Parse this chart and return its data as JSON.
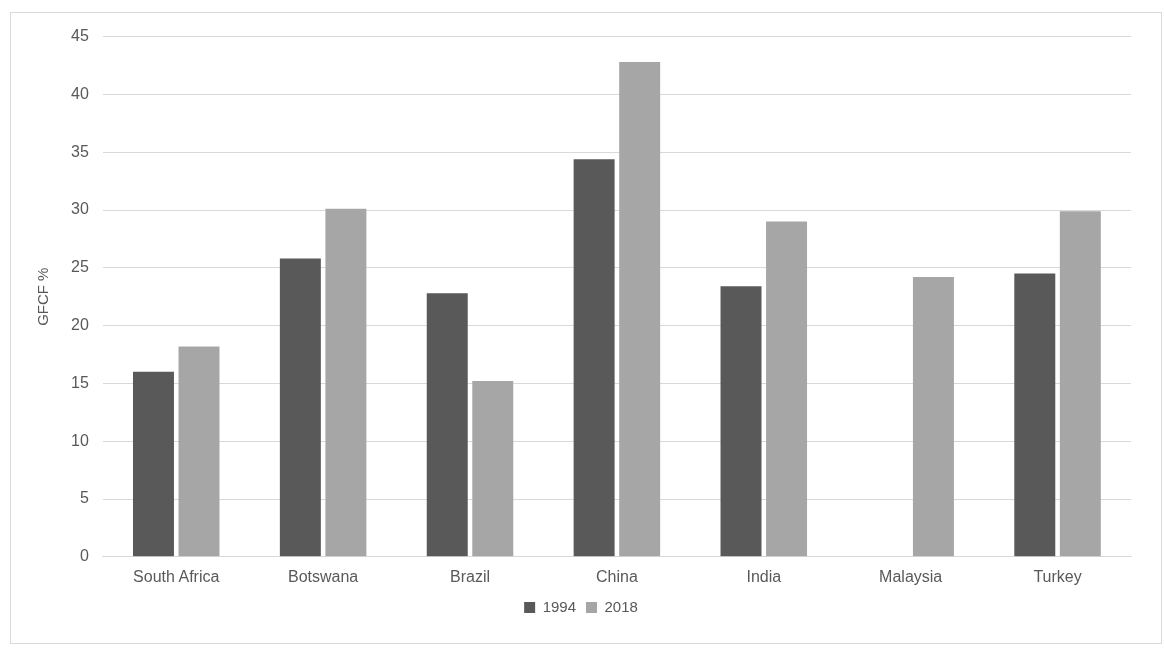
{
  "chart_data": {
    "type": "bar",
    "ylabel": "GFCF %",
    "categories": [
      "South Africa",
      "Botswana",
      "Brazil",
      "China",
      "India",
      "Malaysia",
      "Turkey"
    ],
    "series": [
      {
        "name": "1994",
        "color": "#595959",
        "values": [
          16.0,
          25.8,
          22.8,
          34.4,
          23.4,
          null,
          24.5
        ]
      },
      {
        "name": "2018",
        "color": "#a6a6a6",
        "values": [
          18.2,
          30.1,
          15.2,
          42.8,
          29.0,
          24.2,
          29.9
        ]
      }
    ],
    "ylim": [
      0,
      45
    ],
    "yticks": [
      0,
      5,
      10,
      15,
      20,
      25,
      30,
      35,
      40,
      45
    ],
    "grid": "y",
    "legend": "bottom"
  }
}
